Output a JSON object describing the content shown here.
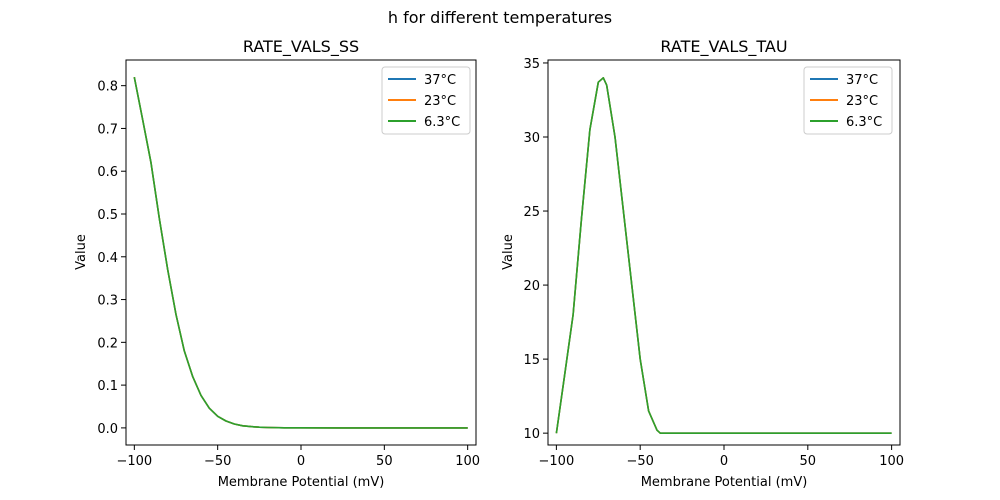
{
  "figure": {
    "suptitle": "h for different temperatures"
  },
  "chart_data": [
    {
      "type": "line",
      "title": "RATE_VALS_SS",
      "xlabel": "Membrane Potential (mV)",
      "ylabel": "Value",
      "xlim": [
        -105,
        105
      ],
      "ylim": [
        -0.04,
        0.86
      ],
      "xticks": [
        -100,
        -50,
        0,
        50,
        100
      ],
      "xticklabels": [
        "−100",
        "−50",
        "0",
        "50",
        "100"
      ],
      "yticks": [
        0.0,
        0.1,
        0.2,
        0.3,
        0.4,
        0.5,
        0.6,
        0.7,
        0.8
      ],
      "yticklabels": [
        "0.0",
        "0.1",
        "0.2",
        "0.3",
        "0.4",
        "0.5",
        "0.6",
        "0.7",
        "0.8"
      ],
      "legend": "top-right",
      "x": [
        -100,
        -95,
        -90,
        -85,
        -80,
        -75,
        -70,
        -65,
        -60,
        -55,
        -50,
        -45,
        -40,
        -35,
        -30,
        -25,
        -20,
        -10,
        0,
        25,
        50,
        75,
        100
      ],
      "series": [
        {
          "name": "37°C",
          "color": "#1f77b4",
          "values": [
            0.82,
            0.72,
            0.62,
            0.49,
            0.37,
            0.265,
            0.18,
            0.12,
            0.076,
            0.046,
            0.027,
            0.016,
            0.009,
            0.005,
            0.003,
            0.0015,
            0.0008,
            0.0003,
            0.0001,
            0.0,
            0.0,
            0.0,
            0.0
          ]
        },
        {
          "name": "23°C",
          "color": "#ff7f0e",
          "values": [
            0.82,
            0.72,
            0.62,
            0.49,
            0.37,
            0.265,
            0.18,
            0.12,
            0.076,
            0.046,
            0.027,
            0.016,
            0.009,
            0.005,
            0.003,
            0.0015,
            0.0008,
            0.0003,
            0.0001,
            0.0,
            0.0,
            0.0,
            0.0
          ]
        },
        {
          "name": "6.3°C",
          "color": "#2ca02c",
          "values": [
            0.82,
            0.72,
            0.62,
            0.49,
            0.37,
            0.265,
            0.18,
            0.12,
            0.076,
            0.046,
            0.027,
            0.016,
            0.009,
            0.005,
            0.003,
            0.0015,
            0.0008,
            0.0003,
            0.0001,
            0.0,
            0.0,
            0.0,
            0.0
          ]
        }
      ]
    },
    {
      "type": "line",
      "title": "RATE_VALS_TAU",
      "xlabel": "Membrane Potential (mV)",
      "ylabel": "Value",
      "xlim": [
        -105,
        105
      ],
      "ylim": [
        9.2,
        35.2
      ],
      "xticks": [
        -100,
        -50,
        0,
        50,
        100
      ],
      "xticklabels": [
        "−100",
        "−50",
        "0",
        "50",
        "100"
      ],
      "yticks": [
        10,
        15,
        20,
        25,
        30,
        35
      ],
      "yticklabels": [
        "10",
        "15",
        "20",
        "25",
        "30",
        "35"
      ],
      "legend": "top-right",
      "x": [
        -100,
        -95,
        -90,
        -85,
        -80,
        -75,
        -72,
        -70,
        -65,
        -60,
        -55,
        -50,
        -45,
        -40,
        -38,
        -35,
        -20,
        0,
        50,
        100
      ],
      "series": [
        {
          "name": "37°C",
          "color": "#1f77b4",
          "values": [
            10.0,
            14.0,
            18.0,
            24.5,
            30.5,
            33.7,
            34.0,
            33.5,
            30.0,
            25.0,
            20.0,
            15.0,
            11.5,
            10.2,
            10.0,
            10.0,
            10.0,
            10.0,
            10.0,
            10.0
          ]
        },
        {
          "name": "23°C",
          "color": "#ff7f0e",
          "values": [
            10.0,
            14.0,
            18.0,
            24.5,
            30.5,
            33.7,
            34.0,
            33.5,
            30.0,
            25.0,
            20.0,
            15.0,
            11.5,
            10.2,
            10.0,
            10.0,
            10.0,
            10.0,
            10.0,
            10.0
          ]
        },
        {
          "name": "6.3°C",
          "color": "#2ca02c",
          "values": [
            10.0,
            14.0,
            18.0,
            24.5,
            30.5,
            33.7,
            34.0,
            33.5,
            30.0,
            25.0,
            20.0,
            15.0,
            11.5,
            10.2,
            10.0,
            10.0,
            10.0,
            10.0,
            10.0,
            10.0
          ]
        }
      ]
    }
  ]
}
